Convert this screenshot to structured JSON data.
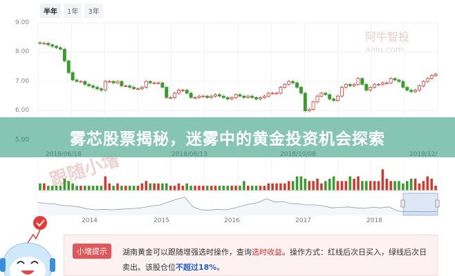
{
  "tabs": [
    {
      "label": "半年",
      "active": true
    },
    {
      "label": "1年"
    },
    {
      "label": "3年"
    }
  ],
  "banner": {
    "title": "雾芯股票揭秘，迷雾中的黄金投资机会探索"
  },
  "watermark": {
    "cn": "阿牛智投",
    "en": "aniu.com"
  },
  "stamp": "跟随小增",
  "tip": {
    "badge": "小增提示",
    "text1": "湖南黄金可以跟随增强选时操作，查询",
    "link": "选时收益",
    "text2": "。操作方式：红线后次日买入，绿线后次日卖出。该股仓位",
    "limit": "不超过18%",
    "end": "。"
  },
  "colors": {
    "up": "#d0392b",
    "down": "#3a9a2e",
    "banner": "#7ec2ae",
    "navigator": "#8a96a8"
  },
  "chart_data": {
    "type": "candlestick",
    "yticks": [
      "9.00",
      "8.00",
      "7.00",
      "6.00",
      "5.00"
    ],
    "ylim": [
      5,
      9
    ],
    "xticks": [
      "2018/06/18",
      "2018/08/13",
      "2018/10/08",
      "2018/12/"
    ],
    "close": [
      8.3,
      8.3,
      8.25,
      8.2,
      8.15,
      8.1,
      7.7,
      7.3,
      7.05,
      7.0,
      7.0,
      6.9,
      6.85,
      6.8,
      6.75,
      6.7,
      7.0,
      7.0,
      6.95,
      7.0,
      6.85,
      6.85,
      6.8,
      6.75,
      6.75,
      6.8,
      7.0,
      6.95,
      6.95,
      6.95,
      6.8,
      6.45,
      6.45,
      6.6,
      6.7,
      6.7,
      6.6,
      6.45,
      6.45,
      6.5,
      6.5,
      6.45,
      6.5,
      6.55,
      6.5,
      6.45,
      6.4,
      6.45,
      6.55,
      6.5,
      6.45,
      6.5,
      6.45,
      6.4,
      6.45,
      6.5,
      6.6,
      6.6,
      6.6,
      6.8,
      6.9,
      7.0,
      6.95,
      6.8,
      6.6,
      6.0,
      6.05,
      6.3,
      6.5,
      6.6,
      6.55,
      6.4,
      6.35,
      6.5,
      6.8,
      6.9,
      6.85,
      6.9,
      7.1,
      6.9,
      6.7,
      6.8,
      6.9,
      6.9,
      6.95,
      6.95,
      7.1,
      7.05,
      7.0,
      6.8,
      6.7,
      6.65,
      6.7,
      6.85,
      7.0,
      7.1,
      7.2,
      7.25
    ],
    "volume": [
      3,
      3,
      2,
      2,
      2,
      2,
      5,
      4,
      3,
      2,
      2,
      2,
      2,
      2,
      2,
      2,
      6,
      3,
      2,
      3,
      2,
      2,
      2,
      2,
      2,
      3,
      4,
      3,
      3,
      3,
      3,
      3,
      2,
      2,
      3,
      2,
      3,
      2,
      2,
      2,
      2,
      2,
      2,
      2,
      2,
      2,
      2,
      2,
      2,
      2,
      4,
      2,
      2,
      2,
      2,
      2,
      3,
      3,
      3,
      3,
      3,
      4,
      4,
      6,
      6,
      5,
      4,
      4,
      5,
      3,
      4,
      5,
      6,
      4,
      4,
      4,
      6,
      5,
      6,
      4,
      4,
      4,
      4,
      4,
      9,
      5,
      4,
      4,
      4,
      3,
      4,
      5,
      5,
      3,
      4,
      6,
      5,
      2
    ],
    "navigator": {
      "xticks": [
        "2014",
        "2015",
        "2016",
        "2017",
        "2018"
      ],
      "values": [
        7.5,
        7.3,
        7.2,
        6.9,
        6.8,
        6.6,
        6.2,
        6.0,
        6.1,
        6.0,
        6.1,
        6.2,
        6.3,
        6.5,
        6.8,
        7.0,
        7.6,
        8.2,
        8.6,
        6.6,
        6.0,
        5.9,
        6.1,
        6.0,
        6.3,
        6.8,
        7.2,
        7.5,
        8.3,
        7.6,
        7.7,
        7.3,
        7.2,
        7.0,
        7.0,
        6.8,
        6.4,
        6.5,
        6.6,
        6.4,
        6.3,
        6.5,
        6.4,
        6.6,
        5.8,
        5.6,
        5.7,
        5.6,
        5.6,
        5.7
      ]
    }
  }
}
